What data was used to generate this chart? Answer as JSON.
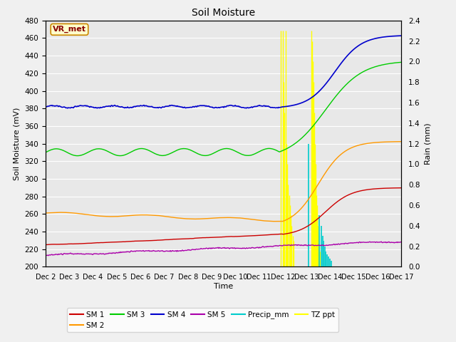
{
  "title": "Soil Moisture",
  "xlabel": "Time",
  "ylabel_left": "Soil Moisture (mV)",
  "ylabel_right": "Rain (mm)",
  "ylim_left": [
    200,
    480
  ],
  "ylim_right": [
    0.0,
    2.4
  ],
  "x_ticks": [
    2,
    3,
    4,
    5,
    6,
    7,
    8,
    9,
    10,
    11,
    12,
    13,
    14,
    15,
    16,
    17
  ],
  "x_tick_labels": [
    "Dec 2",
    "Dec 3",
    "Dec 4",
    "Dec 5",
    "Dec 6",
    "Dec 7",
    "Dec 8",
    "Dec 9",
    "Dec 10",
    "Dec 11",
    "Dec 12",
    "Dec 13",
    "Dec 14",
    "Dec 15",
    "Dec 16",
    "Dec 17"
  ],
  "yticks_left": [
    200,
    220,
    240,
    260,
    280,
    300,
    320,
    340,
    360,
    380,
    400,
    420,
    440,
    460,
    480
  ],
  "yticks_right": [
    0.0,
    0.2,
    0.4,
    0.6,
    0.8,
    1.0,
    1.2,
    1.4,
    1.6,
    1.8,
    2.0,
    2.2,
    2.4
  ],
  "bg_color": "#e8e8e8",
  "fig_color": "#f0f0f0",
  "grid_color": "#ffffff",
  "sm1_color": "#cc0000",
  "sm2_color": "#ff9900",
  "sm3_color": "#00cc00",
  "sm4_color": "#0000cc",
  "sm5_color": "#aa00aa",
  "precip_color": "#00cccc",
  "tzppt_color": "#ffff00",
  "annot_text": "VR_met",
  "annot_color": "#880000",
  "annot_bg": "#ffffcc",
  "annot_border": "#cc8800",
  "tzppt_spikes": [
    [
      11.93,
      2.3
    ],
    [
      12.0,
      2.3
    ],
    [
      12.05,
      1.8
    ],
    [
      12.08,
      1.5
    ],
    [
      12.12,
      2.3
    ],
    [
      12.15,
      1.2
    ],
    [
      12.18,
      1.0
    ],
    [
      12.22,
      0.8
    ],
    [
      12.28,
      0.7
    ],
    [
      12.32,
      0.6
    ],
    [
      12.35,
      0.5
    ],
    [
      12.38,
      0.4
    ],
    [
      12.42,
      0.3
    ],
    [
      12.45,
      0.25
    ],
    [
      13.22,
      2.3
    ],
    [
      13.25,
      2.2
    ],
    [
      13.28,
      2.0
    ],
    [
      13.3,
      1.8
    ],
    [
      13.32,
      1.5
    ],
    [
      13.35,
      1.2
    ],
    [
      13.38,
      1.0
    ],
    [
      13.4,
      0.8
    ],
    [
      13.42,
      0.7
    ],
    [
      13.44,
      0.6
    ],
    [
      13.46,
      0.5
    ],
    [
      13.48,
      0.4
    ],
    [
      13.5,
      0.3
    ],
    [
      13.52,
      0.25
    ],
    [
      13.55,
      0.2
    ],
    [
      13.58,
      0.15
    ]
  ],
  "precip_spikes": [
    [
      13.1,
      1.2
    ],
    [
      13.55,
      0.5
    ],
    [
      13.62,
      0.4
    ],
    [
      13.68,
      0.3
    ],
    [
      13.72,
      0.25
    ],
    [
      13.78,
      0.2
    ],
    [
      13.82,
      0.15
    ],
    [
      13.88,
      0.12
    ],
    [
      13.92,
      0.1
    ],
    [
      13.98,
      0.08
    ],
    [
      14.05,
      0.06
    ]
  ]
}
